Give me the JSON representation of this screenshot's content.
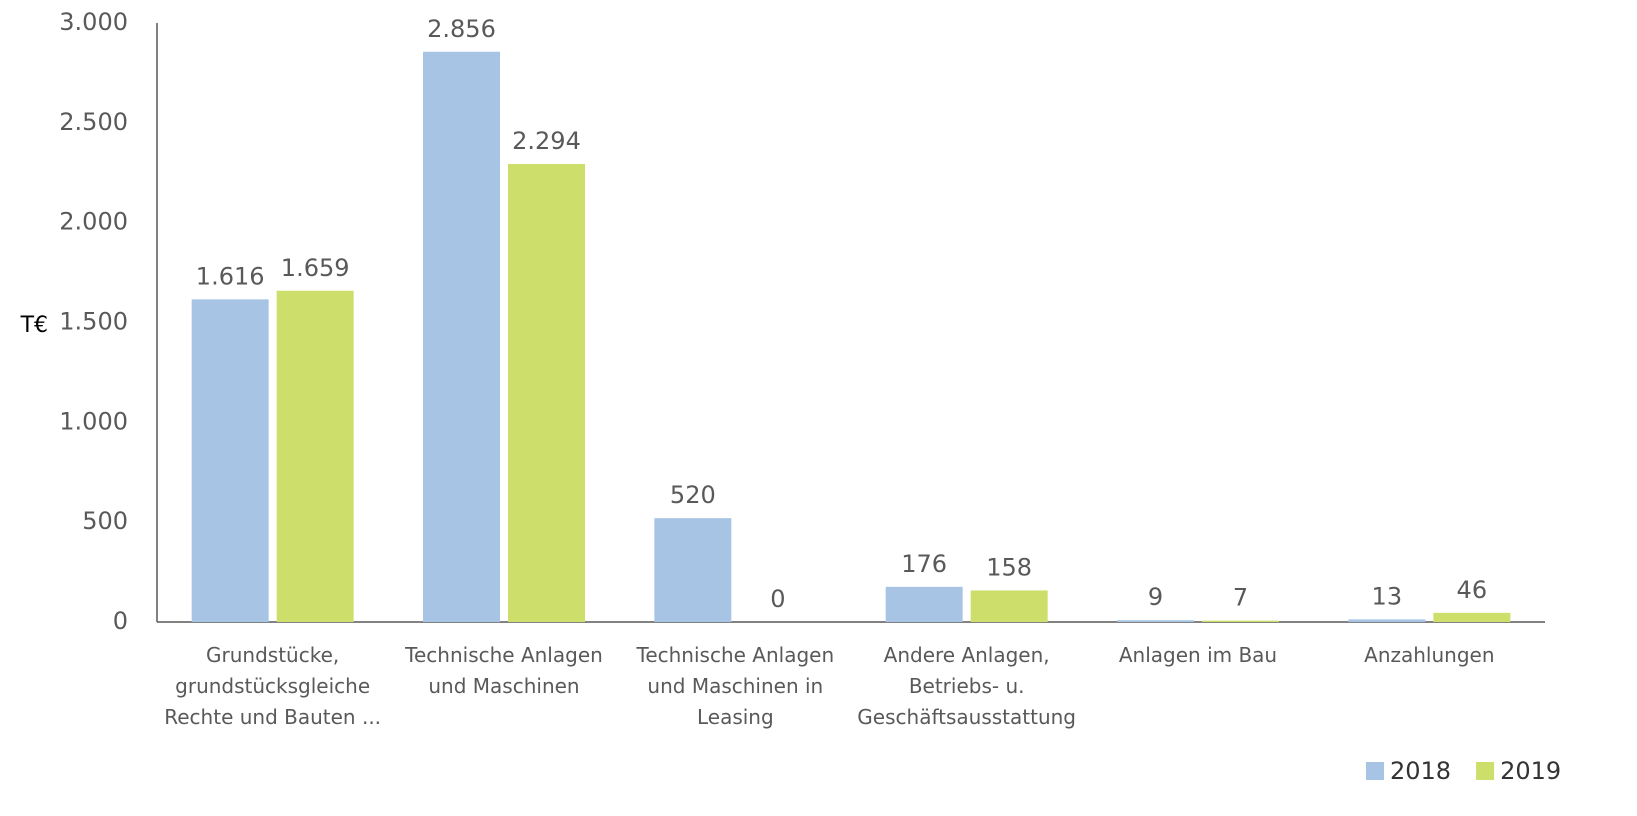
{
  "chart_data": {
    "type": "bar",
    "y_label": "T€",
    "categories": [
      "Grundstücke, grundstücksgleiche Rechte und Bauten ...",
      "Technische Anlagen und Maschinen",
      "Technische Anlagen und Maschinen in Leasing",
      "Andere Anlagen, Betriebs- u. Geschäftsausstattung",
      "Anlagen im Bau",
      "Anzahlungen"
    ],
    "series": [
      {
        "name": "2018",
        "color": "#a7c4e5",
        "values": [
          1616,
          2856,
          520,
          176,
          9,
          13
        ],
        "value_labels": [
          "1.616",
          "2.856",
          "520",
          "176",
          "9",
          "13"
        ]
      },
      {
        "name": "2019",
        "color": "#cddf6a",
        "values": [
          1659,
          2294,
          0,
          158,
          7,
          46
        ],
        "value_labels": [
          "1.659",
          "2.294",
          "0",
          "158",
          "7",
          "46"
        ]
      }
    ],
    "ylim": [
      0,
      3000
    ],
    "yticks": [
      0,
      500,
      {
        "value": 1000,
        "label": "1.000"
      },
      {
        "value": 1500,
        "label": "1.500"
      },
      {
        "value": 2000,
        "label": "2.000"
      },
      {
        "value": 2500,
        "label": "2.500"
      },
      {
        "value": 3000,
        "label": "3.000"
      }
    ],
    "grid": false,
    "legend": "bottom-right"
  }
}
